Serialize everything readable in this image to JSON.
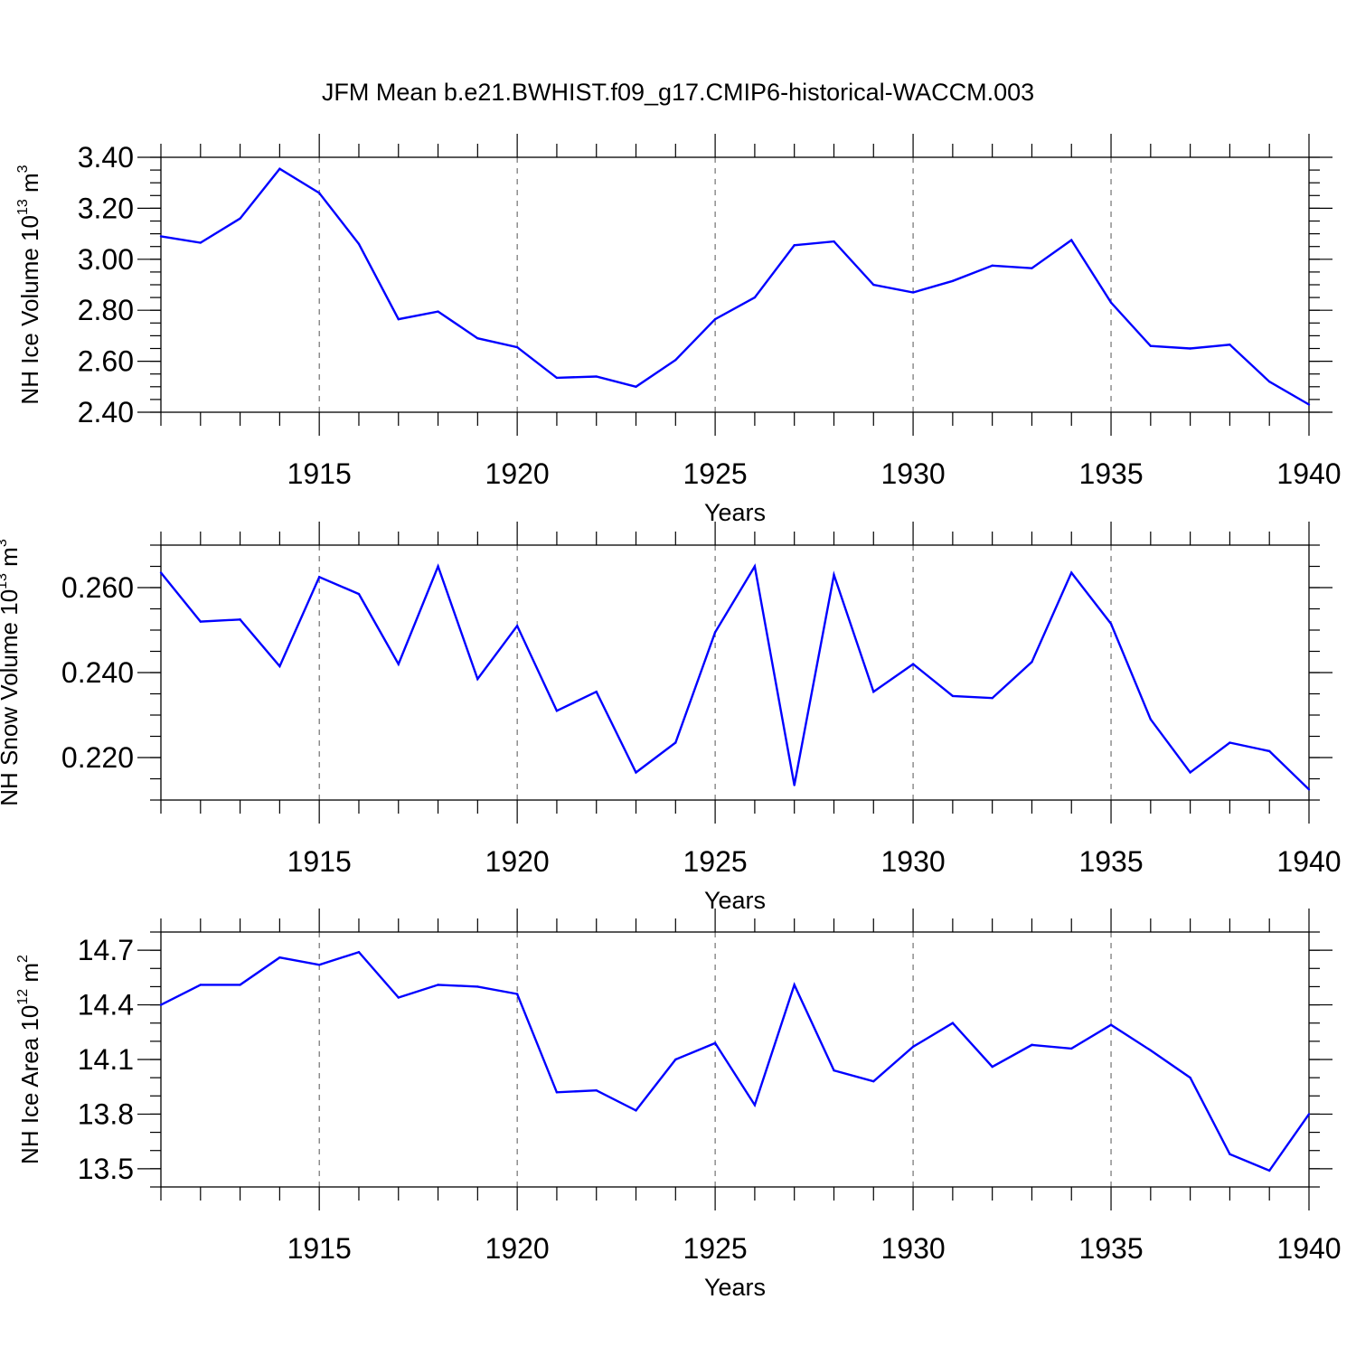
{
  "title": "JFM Mean b.e21.BWHIST.f09_g17.CMIP6-historical-WACCM.003",
  "colors": {
    "line": "#0000ff",
    "axis": "#000000",
    "grid": "#555555"
  },
  "chart_data": [
    {
      "type": "line",
      "xlabel": "Years",
      "ylabel": {
        "main": "NH Ice Volume 10",
        "exp": "13",
        "unit": " m",
        "unit_exp": "3"
      },
      "xlim": [
        1911,
        1940
      ],
      "ylim": [
        2.4,
        3.4
      ],
      "yticks": [
        "2.40",
        "2.60",
        "2.80",
        "3.00",
        "3.20",
        "3.40"
      ],
      "xticks": [
        "1915",
        "1920",
        "1925",
        "1930",
        "1935",
        "1940"
      ],
      "grid": "vertical dashed at labeled years",
      "x": [
        1911,
        1912,
        1913,
        1914,
        1915,
        1916,
        1917,
        1918,
        1919,
        1920,
        1921,
        1922,
        1923,
        1924,
        1925,
        1926,
        1927,
        1928,
        1929,
        1930,
        1931,
        1932,
        1933,
        1934,
        1935,
        1936,
        1937,
        1938,
        1939,
        1940
      ],
      "values": [
        3.09,
        3.065,
        3.16,
        3.355,
        3.26,
        3.06,
        2.765,
        2.795,
        2.69,
        2.655,
        2.535,
        2.54,
        2.5,
        2.605,
        2.765,
        2.85,
        3.055,
        3.07,
        2.9,
        2.87,
        2.915,
        2.975,
        2.965,
        3.075,
        2.83,
        2.66,
        2.65,
        2.665,
        2.52,
        2.43
      ]
    },
    {
      "type": "line",
      "xlabel": "Years",
      "ylabel": {
        "main": "NH Snow Volume 10",
        "exp": "13",
        "unit": " m",
        "unit_exp": "3"
      },
      "xlim": [
        1911,
        1940
      ],
      "ylim": [
        0.21,
        0.27
      ],
      "yticks": [
        "0.220",
        "0.240",
        "0.260"
      ],
      "xticks": [
        "1915",
        "1920",
        "1925",
        "1930",
        "1935",
        "1940"
      ],
      "grid": "vertical dashed at labeled years",
      "x": [
        1911,
        1912,
        1913,
        1914,
        1915,
        1916,
        1917,
        1918,
        1919,
        1920,
        1921,
        1922,
        1923,
        1924,
        1925,
        1926,
        1927,
        1928,
        1929,
        1930,
        1931,
        1932,
        1933,
        1934,
        1935,
        1936,
        1937,
        1938,
        1939,
        1940
      ],
      "values": [
        0.2635,
        0.252,
        0.2525,
        0.2415,
        0.2625,
        0.2585,
        0.242,
        0.265,
        0.2385,
        0.251,
        0.231,
        0.2355,
        0.2165,
        0.2235,
        0.2495,
        0.265,
        0.2135,
        0.263,
        0.2355,
        0.242,
        0.2345,
        0.234,
        0.2425,
        0.2635,
        0.2515,
        0.229,
        0.2165,
        0.2235,
        0.2215,
        0.2125
      ]
    },
    {
      "type": "line",
      "xlabel": "Years",
      "ylabel": {
        "main": "NH Ice Area 10",
        "exp": "12",
        "unit": " m",
        "unit_exp": "2"
      },
      "xlim": [
        1911,
        1940
      ],
      "ylim": [
        13.4,
        14.8
      ],
      "yticks": [
        "13.5",
        "13.8",
        "14.1",
        "14.4",
        "14.7"
      ],
      "xticks": [
        "1915",
        "1920",
        "1925",
        "1930",
        "1935",
        "1940"
      ],
      "grid": "vertical dashed at labeled years",
      "x": [
        1911,
        1912,
        1913,
        1914,
        1915,
        1916,
        1917,
        1918,
        1919,
        1920,
        1921,
        1922,
        1923,
        1924,
        1925,
        1926,
        1927,
        1928,
        1929,
        1930,
        1931,
        1932,
        1933,
        1934,
        1935,
        1936,
        1937,
        1938,
        1939,
        1940
      ],
      "values": [
        14.4,
        14.51,
        14.51,
        14.66,
        14.62,
        14.69,
        14.44,
        14.51,
        14.5,
        14.46,
        13.92,
        13.93,
        13.82,
        14.1,
        14.19,
        13.85,
        14.51,
        14.04,
        13.98,
        14.17,
        14.3,
        14.06,
        14.18,
        14.16,
        14.29,
        14.15,
        14.0,
        13.58,
        13.49,
        13.8
      ]
    }
  ]
}
